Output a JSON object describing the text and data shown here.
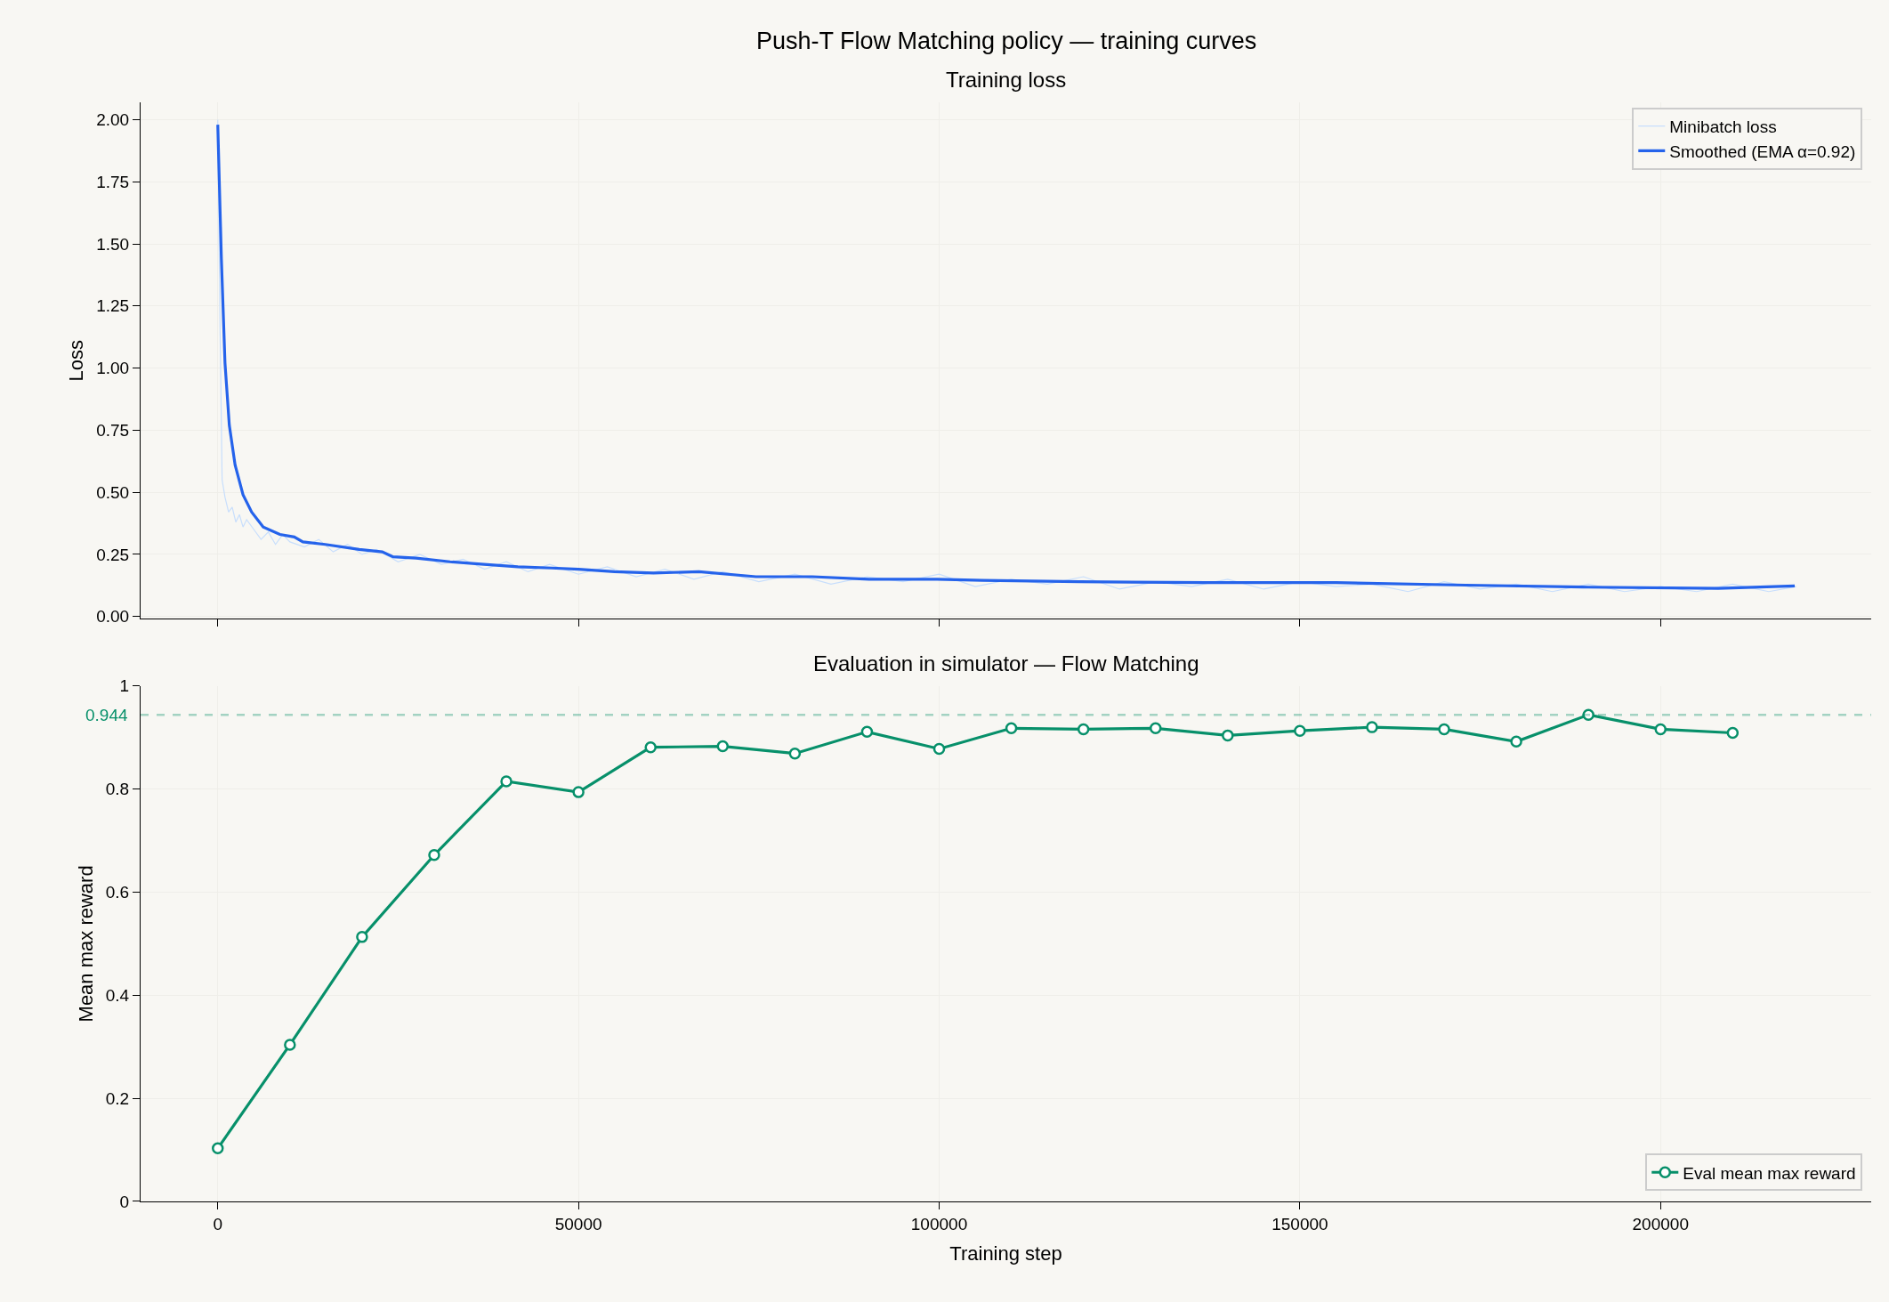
{
  "chart_data": [
    {
      "type": "line",
      "title": "Push-T Flow Matching policy — training curves",
      "subtitle": "Training loss",
      "ylabel": "Loss",
      "xlim": [
        -10700,
        229200
      ],
      "xticks": [
        0,
        50000,
        100000,
        150000,
        200000
      ],
      "ylim": [
        -0.01,
        2.07
      ],
      "yticks": [
        {
          "value": 0,
          "label": "0.00"
        },
        {
          "value": 0.25,
          "label": "0.25"
        },
        {
          "value": 0.5,
          "label": "0.50"
        },
        {
          "value": 0.75,
          "label": "0.75"
        },
        {
          "value": 1,
          "label": "1.00"
        },
        {
          "value": 1.25,
          "label": "1.25"
        },
        {
          "value": 1.5,
          "label": "1.50"
        },
        {
          "value": 1.75,
          "label": "1.75"
        },
        {
          "value": 2,
          "label": "2.00"
        }
      ],
      "tick_labels": "y",
      "grid": true,
      "legend": "top right",
      "marker": "none",
      "series": [
        {
          "name": "Minibatch loss",
          "color": "#c7defc",
          "x": [
            0,
            300,
            600,
            1000,
            1500,
            2000,
            2500,
            3000,
            3500,
            4000,
            5000,
            6000,
            7000,
            8000,
            9000,
            10000,
            12000,
            14000,
            16000,
            18000,
            20000,
            22000,
            25000,
            28000,
            31000,
            34000,
            37000,
            40000,
            43000,
            46000,
            50000,
            54000,
            58000,
            62000,
            66000,
            70000,
            75000,
            80000,
            85000,
            90000,
            95000,
            100000,
            105000,
            110000,
            115000,
            120000,
            125000,
            130000,
            135000,
            140000,
            145000,
            150000,
            155000,
            160000,
            165000,
            170000,
            175000,
            180000,
            185000,
            190000,
            195000,
            200000,
            205000,
            210000,
            215000,
            218800
          ],
          "values": [
            2.0,
            1.2,
            0.55,
            0.48,
            0.42,
            0.44,
            0.38,
            0.41,
            0.36,
            0.39,
            0.35,
            0.31,
            0.34,
            0.29,
            0.33,
            0.3,
            0.28,
            0.31,
            0.26,
            0.29,
            0.25,
            0.27,
            0.22,
            0.25,
            0.21,
            0.23,
            0.19,
            0.22,
            0.18,
            0.21,
            0.17,
            0.2,
            0.16,
            0.19,
            0.15,
            0.18,
            0.14,
            0.17,
            0.13,
            0.16,
            0.14,
            0.17,
            0.12,
            0.15,
            0.13,
            0.16,
            0.11,
            0.14,
            0.12,
            0.15,
            0.11,
            0.14,
            0.12,
            0.13,
            0.1,
            0.14,
            0.11,
            0.13,
            0.1,
            0.13,
            0.1,
            0.12,
            0.1,
            0.13,
            0.1,
            0.12
          ]
        },
        {
          "name": "Smoothed (EMA α=0.92)",
          "color": "#2563eb",
          "x": [
            0,
            500,
            1000,
            1600,
            2400,
            3500,
            4700,
            6300,
            8600,
            10600,
            11800,
            14900,
            19600,
            22800,
            24300,
            27500,
            32200,
            36900,
            41600,
            46300,
            50000,
            55000,
            60400,
            66700,
            74600,
            82400,
            90300,
            99700,
            106000,
            119500,
            137000,
            155000,
            173000,
            190000,
            208000,
            218600
          ],
          "values": [
            1.98,
            1.44,
            1.02,
            0.77,
            0.61,
            0.49,
            0.42,
            0.36,
            0.33,
            0.32,
            0.3,
            0.29,
            0.27,
            0.26,
            0.24,
            0.235,
            0.22,
            0.21,
            0.2,
            0.195,
            0.19,
            0.18,
            0.175,
            0.18,
            0.16,
            0.16,
            0.15,
            0.15,
            0.145,
            0.14,
            0.136,
            0.136,
            0.126,
            0.118,
            0.113,
            0.123
          ]
        }
      ]
    },
    {
      "type": "line",
      "title": "Evaluation in simulator — Flow Matching",
      "xlabel": "Training step",
      "ylabel": "Mean max reward",
      "x": [
        0,
        10000,
        20000,
        30000,
        40000,
        50000,
        60000,
        70000,
        80000,
        90000,
        100000,
        110000,
        120000,
        130000,
        140000,
        150000,
        160000,
        170000,
        180000,
        190000,
        200000,
        210000
      ],
      "xlim": [
        -10700,
        229200
      ],
      "xticks": [
        0,
        50000,
        100000,
        150000,
        200000
      ],
      "ylim": [
        0,
        1
      ],
      "yticks": [
        0,
        0.2,
        0.4,
        0.6,
        0.8,
        1
      ],
      "grid": true,
      "legend": "bottom right",
      "marker": "circle",
      "series": [
        {
          "name": "Eval mean max reward",
          "color": "#07906a",
          "values": [
            0.103,
            0.304,
            0.513,
            0.672,
            0.815,
            0.794,
            0.881,
            0.883,
            0.869,
            0.911,
            0.878,
            0.918,
            0.916,
            0.918,
            0.904,
            0.913,
            0.92,
            0.916,
            0.892,
            0.944,
            0.916,
            0.909
          ]
        }
      ],
      "ref_lines": [
        {
          "axis": "y",
          "value": 0.944,
          "label": "0.944",
          "color": "#07906a",
          "line_style": "dashed"
        }
      ]
    }
  ]
}
